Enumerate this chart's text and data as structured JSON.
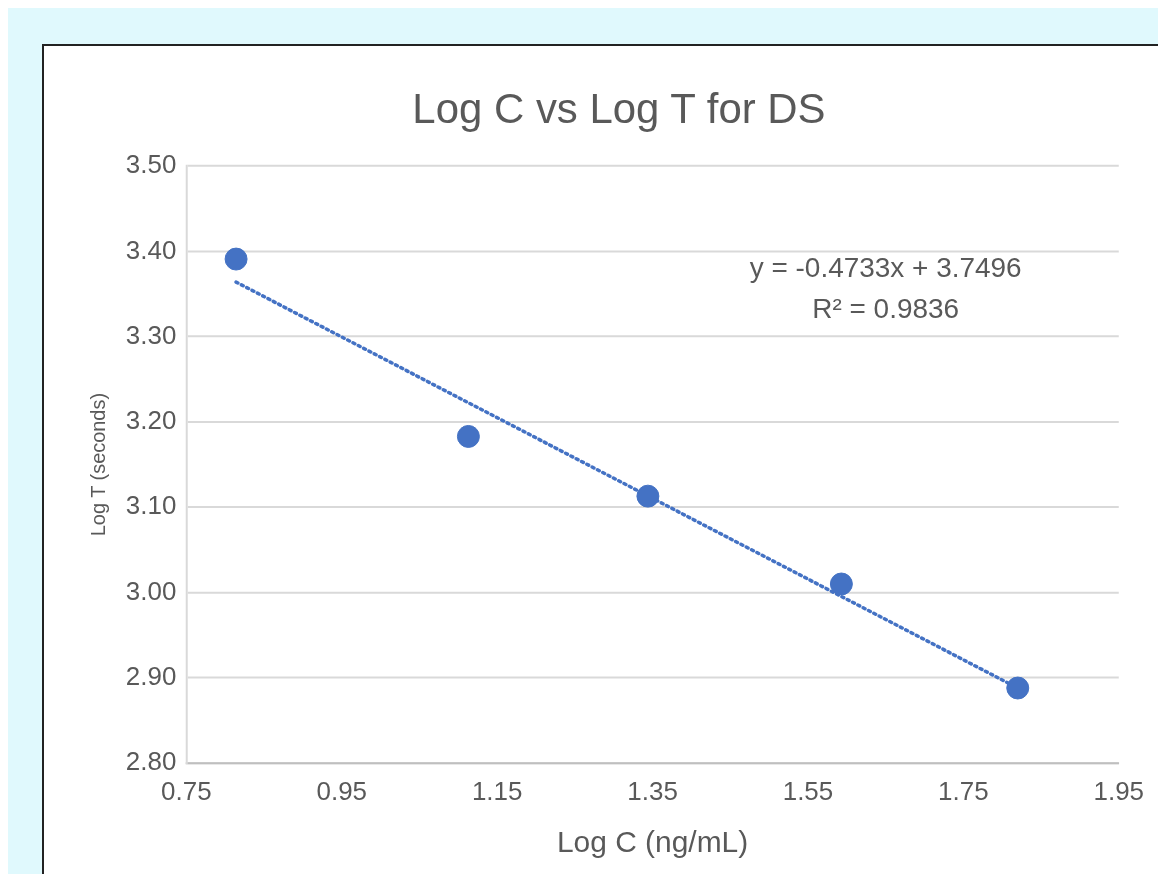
{
  "chart_data": {
    "type": "scatter",
    "title": "Log C vs Log T for DS",
    "xlabel": "Log C (ng/mL)",
    "ylabel": "Log T (seconds)",
    "series": [
      {
        "color": "#4472c4",
        "marker": "circle",
        "x": [
          0.814,
          1.113,
          1.344,
          1.593,
          1.82
        ],
        "values": [
          3.391,
          3.183,
          3.113,
          3.01,
          2.888
        ]
      },
      {
        "type": "line",
        "color": "#4472c4",
        "marker": "none",
        "line_style": "dotted",
        "x": [
          0.814,
          1.82
        ],
        "values": [
          3.364,
          2.888
        ]
      }
    ],
    "xlim": [
      0.75,
      1.95
    ],
    "xticks": [
      {
        "value": 0.75,
        "label": "0.75"
      },
      {
        "value": 0.95,
        "label": "0.95"
      },
      {
        "value": 1.15,
        "label": "1.15"
      },
      {
        "value": 1.35,
        "label": "1.35"
      },
      {
        "value": 1.55,
        "label": "1.55"
      },
      {
        "value": 1.75,
        "label": "1.75"
      },
      {
        "value": 1.95,
        "label": "1.95"
      }
    ],
    "ylim": [
      2.8,
      3.5
    ],
    "yticks": [
      {
        "value": 2.8,
        "label": "2.80"
      },
      {
        "value": 2.9,
        "label": "2.90"
      },
      {
        "value": 3.0,
        "label": "3.00"
      },
      {
        "value": 3.1,
        "label": "3.10"
      },
      {
        "value": 3.2,
        "label": "3.20"
      },
      {
        "value": 3.3,
        "label": "3.30"
      },
      {
        "value": 3.4,
        "label": "3.40"
      },
      {
        "value": 3.5,
        "label": "3.50"
      }
    ],
    "grid": "y",
    "annotations": [
      "y = -0.4733x + 3.7496",
      "R² = 0.9836"
    ]
  }
}
